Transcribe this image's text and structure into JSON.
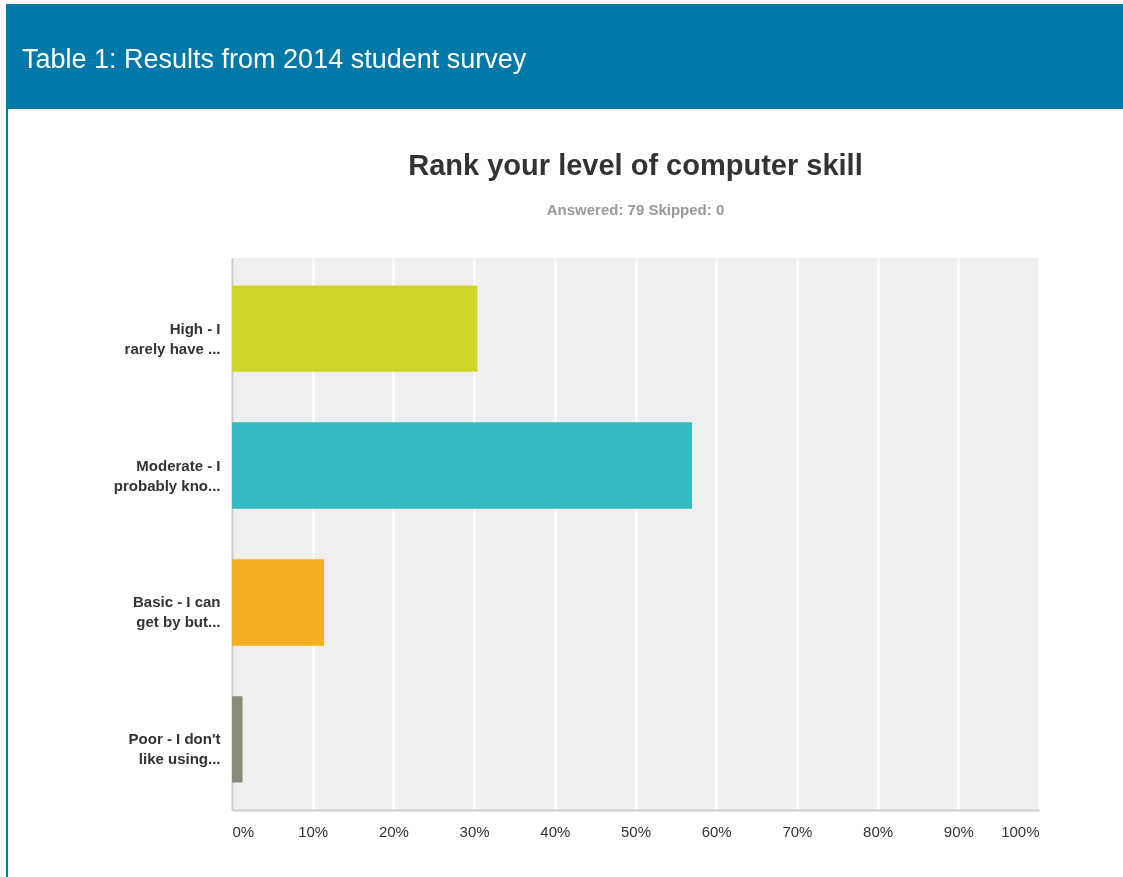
{
  "chart_data": {
    "type": "bar",
    "orientation": "horizontal",
    "title": "Rank your level of computer skill",
    "subtitle": "Answered: 79    Skipped: 0",
    "annotations": [
      "Table 1: Results from 2014 student survey"
    ],
    "categories": [
      "High - I\nrarely have ...",
      "Moderate - I\nprobably kno...",
      "Basic - I can\nget by but...",
      "Poor - I don't\nlike using..."
    ],
    "values": [
      30.4,
      57.0,
      11.4,
      1.3
    ],
    "colors": [
      "#cfd527",
      "#33bcbf",
      "#f6af22",
      "#898978"
    ],
    "xlim": [
      0,
      100
    ],
    "xticks": [
      {
        "value": 0,
        "label": "0%"
      },
      {
        "value": 10,
        "label": "10%"
      },
      {
        "value": 20,
        "label": "20%"
      },
      {
        "value": 30,
        "label": "30%"
      },
      {
        "value": 40,
        "label": "40%"
      },
      {
        "value": 50,
        "label": "50%"
      },
      {
        "value": 60,
        "label": "60%"
      },
      {
        "value": 70,
        "label": "70%"
      },
      {
        "value": 80,
        "label": "80%"
      },
      {
        "value": 90,
        "label": "90%"
      },
      {
        "value": 100,
        "label": "100%"
      }
    ],
    "grid": "x"
  }
}
